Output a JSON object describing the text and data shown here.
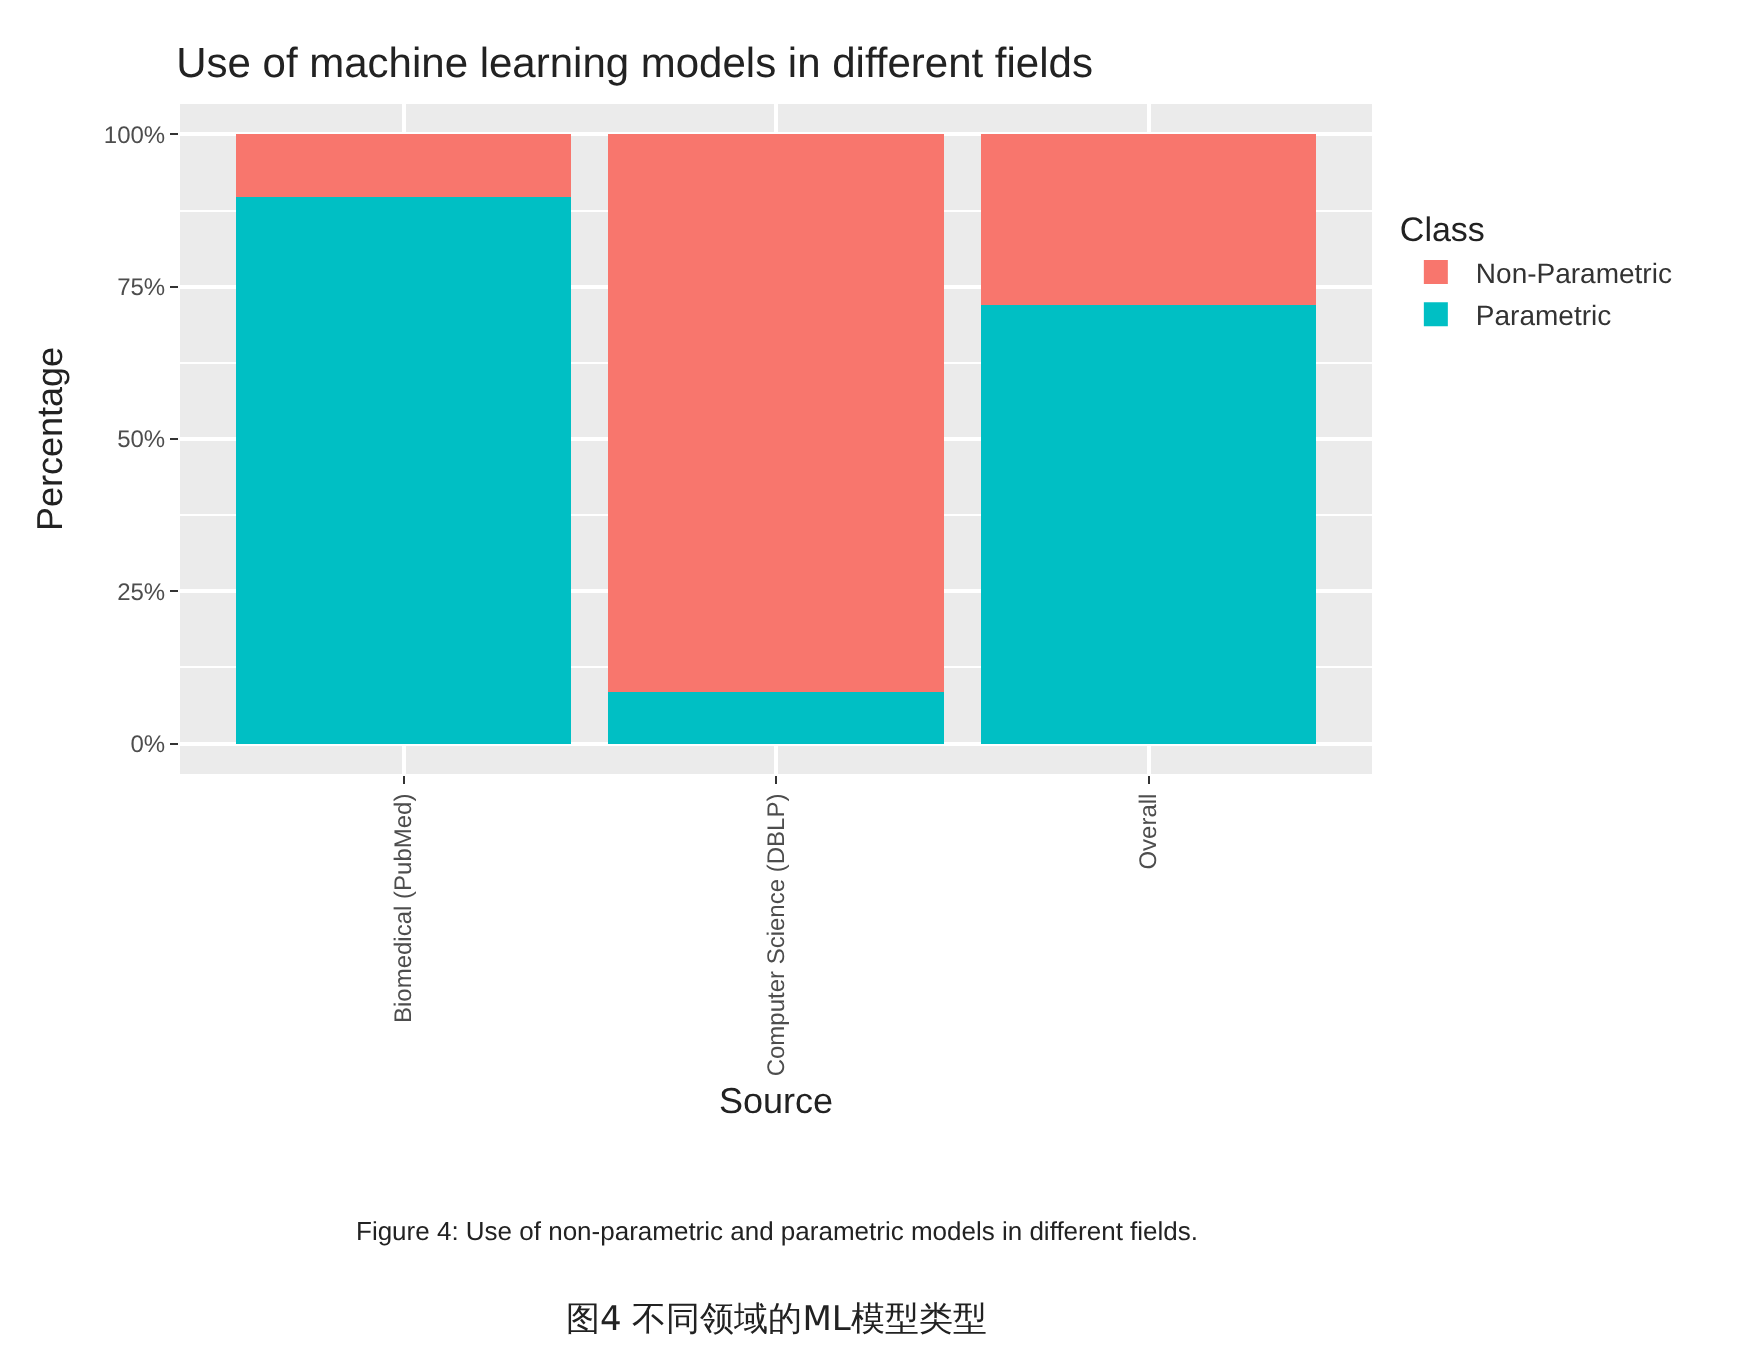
{
  "chart_data": {
    "type": "bar",
    "title": "Use of machine learning models in different fields",
    "xlabel": "Source",
    "ylabel": "Percentage",
    "legend_title": "Class",
    "categories": [
      "Biomedical (PubMed)",
      "Computer Science (DBLP)",
      "Overall"
    ],
    "stacked": true,
    "series": [
      {
        "name": "Parametric",
        "color": "#00bfc4",
        "values": [
          89.7,
          8.5,
          72.0
        ]
      },
      {
        "name": "Non-Parametric",
        "color": "#f8766d",
        "values": [
          10.3,
          91.5,
          28.0
        ]
      }
    ],
    "ylim": [
      -5,
      105
    ],
    "yticks": [
      {
        "value": 0,
        "label": "0%"
      },
      {
        "value": 25,
        "label": "25%"
      },
      {
        "value": 50,
        "label": "50%"
      },
      {
        "value": 75,
        "label": "75%"
      },
      {
        "value": 100,
        "label": "100%"
      }
    ],
    "grid": true,
    "legend": "right",
    "annotations": [
      "Figure 4: Use of non-parametric and parametric models in different fields.",
      "图4 不同领域的ML模型类型"
    ]
  }
}
